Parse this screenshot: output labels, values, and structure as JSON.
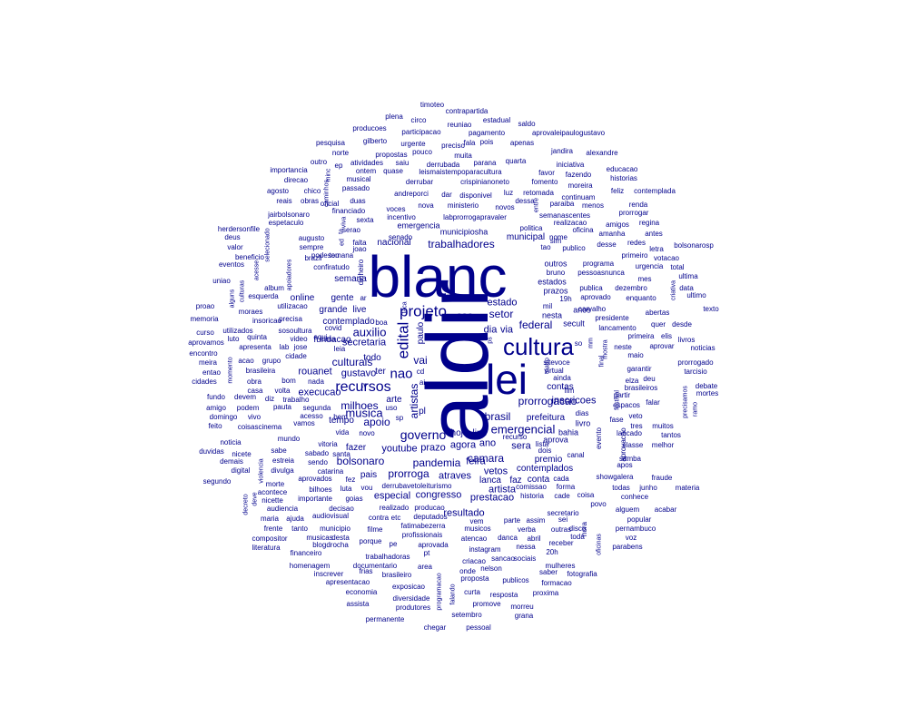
{
  "colors": {
    "word": "#00008B",
    "background": "#FFFFFF"
  },
  "words": [
    "aldir",
    "blanc",
    "lei",
    "cultura",
    "projeto",
    "edital",
    "recursos",
    "nao",
    "governo",
    "musica",
    "auxilio",
    "emergencial",
    "camara",
    "setor",
    "estado",
    "federal",
    "artistas",
    "bolsonaro",
    "pandemia",
    "milhoes",
    "vai",
    "trabalhadores",
    "apoio",
    "brasil",
    "prorrogacao",
    "culturais",
    "secretaria",
    "prorroga",
    "youtube",
    "prazo",
    "feira",
    "agora",
    "ano",
    "vetos",
    "atraves",
    "artista",
    "especial",
    "congresso",
    "prestacao",
    "resultado",
    "contemplados",
    "sera",
    "inscricoes",
    "premio",
    "lanca",
    "faz",
    "conta",
    "contas",
    "prefeitura",
    "hoje",
    "link",
    "sao",
    "dia",
    "via",
    "execucao",
    "gustavo",
    "rouanet",
    "todo",
    "fazer",
    "pais",
    "tempo",
    "paulo",
    "arte",
    "pl",
    "ter",
    "grande",
    "live",
    "gente",
    "contemplado",
    "fundacao",
    "online",
    "semana",
    "nacional",
    "municipal",
    "outros",
    "estados",
    "prazos",
    "recurso",
    "aprova",
    "lista",
    "dois",
    "canal",
    "evento",
    "aprovacao",
    "livro",
    "dias",
    "bahia",
    "19h",
    "mil",
    "nesta",
    "anos",
    "secult",
    "aprovado",
    "publica",
    "dezembro",
    "enquanto",
    "presidente",
    "abertas",
    "lancamento",
    "primeira",
    "neste",
    "aprovar",
    "maio",
    "garantir",
    "deu",
    "elza",
    "partir",
    "fase",
    "tres",
    "muitos",
    "lancado",
    "tantos",
    "classe",
    "melhor",
    "samba",
    "apos",
    "showgalera",
    "fraude",
    "todas",
    "junho",
    "conhece",
    "alguem",
    "acabar",
    "materia",
    "popular",
    "pernambuco",
    "voz",
    "parabens",
    "oficinas",
    "disco",
    "hora",
    "outras",
    "toda",
    "receber",
    "nessa",
    "abril",
    "20h",
    "saber",
    "fotografia",
    "mulheres",
    "formacao",
    "proxima",
    "morreu",
    "grana",
    "resposta",
    "promove",
    "setembro",
    "curta",
    "chegar",
    "pessoal",
    "produtores",
    "diversidade",
    "programacao",
    "falando",
    "exposicao",
    "economia",
    "permanente",
    "assista",
    "apresentacao",
    "inscrever",
    "frias",
    "brasileiro",
    "homenagem",
    "documentario",
    "area",
    "trabalhadoras",
    "financeiro",
    "literatura",
    "pe",
    "aprovada",
    "pt",
    "profissionais",
    "blogdrocha",
    "porque",
    "musicas",
    "desta",
    "compositor",
    "frente",
    "tanto",
    "municipio",
    "filme",
    "fatimabezerra",
    "musicos",
    "atencao",
    "danca",
    "instagram",
    "onde",
    "nelson",
    "criacao",
    "proposta",
    "publicos",
    "sancao",
    "sociais",
    "verba",
    "parte",
    "assim",
    "sei",
    "secretario",
    "povo",
    "coisa",
    "cade",
    "historia",
    "comissao",
    "forma",
    "cada",
    "realizado",
    "producao",
    "etc",
    "deputados",
    "decisao",
    "audiovisual",
    "contra",
    "vem",
    "importante",
    "goias",
    "nicette",
    "luta",
    "vou",
    "derrubavetoleiturismo",
    "aprovados",
    "fez",
    "bilhoes",
    "morte",
    "audiencia",
    "maria",
    "ajuda",
    "acontece",
    "decreto",
    "deve",
    "violencia",
    "catarina",
    "sendo",
    "sabado",
    "santa",
    "divulga",
    "estreia",
    "sabe",
    "nicete",
    "digital",
    "demais",
    "segundo",
    "duvidas",
    "noticia",
    "feito",
    "domingo",
    "vivo",
    "coisascinema",
    "vamos",
    "bem",
    "acesso",
    "pauta",
    "segunda",
    "amigo",
    "podem",
    "fundo",
    "devem",
    "diz",
    "trabalho",
    "obra",
    "volta",
    "casa",
    "cidades",
    "entao",
    "meira",
    "encontro",
    "aprovamos",
    "luto",
    "quinta",
    "curso",
    "utilizados",
    "memoria",
    "proao",
    "moraes",
    "insoricao",
    "precisa",
    "utilizacao",
    "apresenta",
    "lab",
    "jose",
    "cidade",
    "acao",
    "grupo",
    "brasileira",
    "bom",
    "nada",
    "uma",
    "esquerda",
    "album",
    "alguns",
    "momento",
    "culturas",
    "acesse",
    "uniao",
    "eventos",
    "deus",
    "valor",
    "beneficio",
    "selecionado",
    "herdersonfile",
    "jairbolsonaro",
    "espetaculo",
    "augusto",
    "sempre",
    "podesemana",
    "confiratudo",
    "tou",
    "falta",
    "joao",
    "brazil",
    "aqui",
    "leia",
    "video",
    "sosoultura",
    "covid",
    "dinheiro",
    "boa",
    "vida",
    "novo",
    "mundo",
    "vitoria",
    "apoiadores",
    "agosto",
    "chico",
    "direcao",
    "reais",
    "obras",
    "importancia",
    "outro",
    "ep",
    "atividades",
    "saiu",
    "ontem",
    "quase",
    "musical",
    "passado",
    "voces",
    "oficial",
    "duas",
    "financiado",
    "sexta",
    "serao",
    "senado",
    "emergencia",
    "incentivo",
    "labprorrogapravaler",
    "municipiosha",
    "nova",
    "ministerio",
    "andreporci",
    "dar",
    "disponivel",
    "derrubar",
    "crispinianoneto",
    "leismaistempoparacultura",
    "derrubada",
    "muita",
    "parana",
    "quarta",
    "fala",
    "preciso",
    "pois",
    "apenas",
    "propostas",
    "pouco",
    "gilberto",
    "urgente",
    "norte",
    "pesquisa",
    "producoes",
    "participacao",
    "pagamento",
    "reuniao",
    "estadual",
    "saldo",
    "aprovaleipaulogustavo",
    "plena",
    "circo",
    "contrapartida",
    "timoteo",
    "luz",
    "retomada",
    "fomento",
    "novos",
    "dessa",
    "favor",
    "fazendo",
    "iniciativa",
    "educacao",
    "jandira",
    "alexandre",
    "historias",
    "moreira",
    "feliz",
    "contemplada",
    "continuam",
    "paraiba",
    "menos",
    "semanascentes",
    "realizacao",
    "prorrogar",
    "renda",
    "amigos",
    "regina",
    "oficina",
    "amanha",
    "antes",
    "politica",
    "nome",
    "sim",
    "desse",
    "redes",
    "letra",
    "bolsonarosp",
    "tao",
    "publico",
    "votacao",
    "urgencia",
    "bruno",
    "pessoasnunca",
    "mes",
    "ultima",
    "total",
    "criativa",
    "data",
    "ultimo",
    "quer",
    "desde",
    "livros",
    "texto",
    "elis",
    "prorrogado",
    "noticias",
    "tarcisio",
    "debate",
    "mortes",
    "brasileiros",
    "falar",
    "veto",
    "espacos",
    "precisamos",
    "ramo",
    "so",
    "mostra",
    "virtual",
    "ainda",
    "fim",
    "teatro",
    "sitevoce",
    "final",
    "festival",
    "mm",
    "sp",
    "uso",
    "tv",
    "ai",
    "cd",
    "faca",
    "ar",
    "programa",
    "carvalho",
    "primeiro",
    "caminhos",
    "minc",
    "ps",
    "entre",
    "ed",
    "viva",
    "ta"
  ]
}
